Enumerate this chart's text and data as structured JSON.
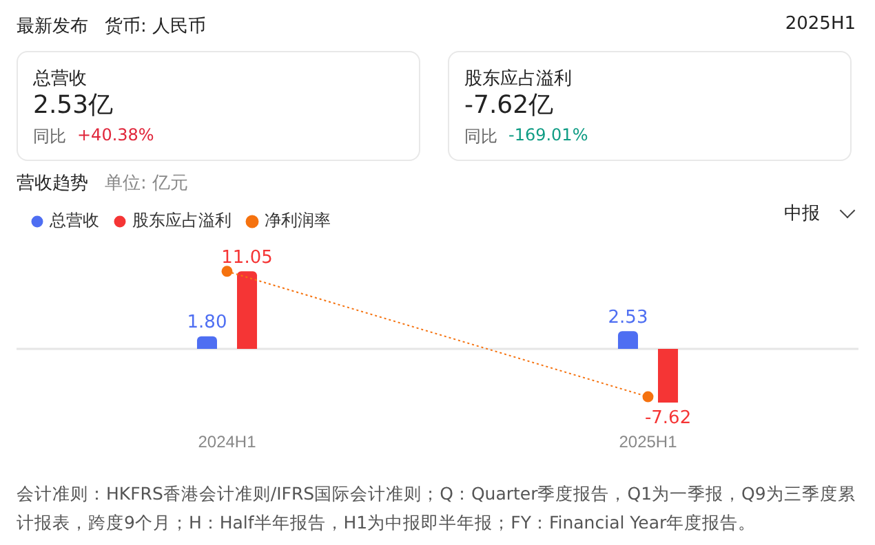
{
  "chart_data": {
    "type": "bar",
    "title": "营收趋势",
    "subtitle": "单位: 亿元",
    "categories": [
      "2024H1",
      "2025H1"
    ],
    "series": [
      {
        "name": "总营收",
        "color": "#4e6ef2",
        "values": [
          1.8,
          2.53
        ],
        "value_labels": [
          "1.80",
          "2.53"
        ]
      },
      {
        "name": "股东应占溢利",
        "color": "#f53535",
        "values": [
          11.05,
          -7.62
        ],
        "value_labels": [
          "11.05",
          "-7.62"
        ]
      },
      {
        "name": "净利润率",
        "type": "line",
        "color": "#f5720f",
        "values": [
          11.05,
          -6.8
        ],
        "marker": "circle",
        "line_style": "dotted"
      }
    ],
    "legend": "top left",
    "grid": false,
    "tick_labels": "x",
    "annotations": [
      "最新发布",
      "货币: 人民币",
      "2025H1",
      "总营收",
      "2.53亿",
      "同比",
      "+40.38%",
      "股东应占溢利",
      "-7.62亿",
      "同比",
      "-169.01%",
      "中报",
      "会计准则：HKFRS香港会计准则/IFRS国际会计准则；Q：Quarter季度报告，Q1为一季报，Q9为三季度累计报表，跨度9个月；H：Half半年报告，H1为中报即半年报；FY：Financial Year年度报告。"
    ]
  }
}
